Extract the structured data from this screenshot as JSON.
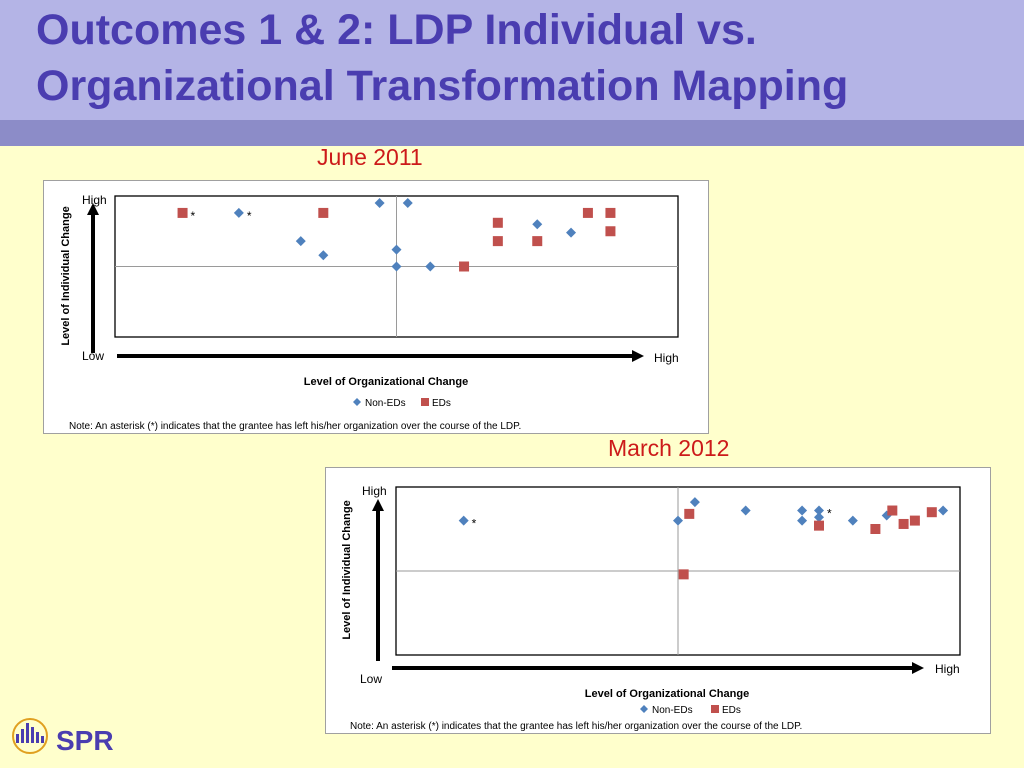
{
  "slide": {
    "title_line1": "Outcomes 1 & 2:  LDP Individual vs.",
    "title_line2": "Organizational Transformation Mapping",
    "logo_text": "SPR"
  },
  "colors": {
    "header_bg": "#b4b4e6",
    "header_strip": "#8c8cc8",
    "title": "#4a3db0",
    "page_bg": "#ffffcc",
    "period_label": "#cc1a1a",
    "non_eds": "#4f81bd",
    "eds": "#c0504d"
  },
  "chart_data": [
    {
      "type": "scatter",
      "period": "June 2011",
      "xlabel": "Level of Organizational  Change",
      "ylabel": "Level of Individual  Change",
      "x_low_label": "Low",
      "x_high_label": "High",
      "y_high_label": "High",
      "note": "Note: An asterisk (*) indicates that the grantee has left his/her organization over the course  of the LDP.",
      "xlim": [
        0,
        100
      ],
      "ylim": [
        0,
        100
      ],
      "grid": "quadrant lines at midpoint",
      "legend": "bottom-center",
      "series": [
        {
          "name": "Non-EDs",
          "marker": "diamond",
          "points": [
            {
              "x": 22,
              "y": 88,
              "asterisk": true
            },
            {
              "x": 33,
              "y": 68
            },
            {
              "x": 37,
              "y": 58
            },
            {
              "x": 47,
              "y": 95
            },
            {
              "x": 50,
              "y": 62
            },
            {
              "x": 50,
              "y": 50
            },
            {
              "x": 52,
              "y": 95
            },
            {
              "x": 56,
              "y": 50
            },
            {
              "x": 75,
              "y": 80
            },
            {
              "x": 81,
              "y": 74
            }
          ]
        },
        {
          "name": "EDs",
          "marker": "square",
          "points": [
            {
              "x": 12,
              "y": 88,
              "asterisk": true
            },
            {
              "x": 37,
              "y": 88
            },
            {
              "x": 62,
              "y": 50
            },
            {
              "x": 68,
              "y": 81
            },
            {
              "x": 68,
              "y": 68
            },
            {
              "x": 75,
              "y": 68
            },
            {
              "x": 84,
              "y": 88
            },
            {
              "x": 88,
              "y": 88
            },
            {
              "x": 88,
              "y": 75
            }
          ]
        }
      ]
    },
    {
      "type": "scatter",
      "period": "March 2012",
      "xlabel": "Level of Organizational  Change",
      "ylabel": "Level of Individual  Change",
      "x_low_label": "Low",
      "x_high_label": "High",
      "y_high_label": "High",
      "note": "Note: An asterisk (*) indicates that the grantee has left his/her organization over the course  of the LDP.",
      "xlim": [
        0,
        100
      ],
      "ylim": [
        0,
        100
      ],
      "grid": "quadrant lines at midpoint",
      "legend": "bottom-center",
      "series": [
        {
          "name": "Non-EDs",
          "marker": "diamond",
          "points": [
            {
              "x": 12,
              "y": 80,
              "asterisk": true
            },
            {
              "x": 50,
              "y": 80
            },
            {
              "x": 53,
              "y": 91
            },
            {
              "x": 62,
              "y": 86
            },
            {
              "x": 72,
              "y": 86
            },
            {
              "x": 72,
              "y": 80
            },
            {
              "x": 75,
              "y": 86,
              "asterisk": true
            },
            {
              "x": 75,
              "y": 82
            },
            {
              "x": 81,
              "y": 80
            },
            {
              "x": 87,
              "y": 83
            },
            {
              "x": 97,
              "y": 86
            }
          ]
        },
        {
          "name": "EDs",
          "marker": "square",
          "points": [
            {
              "x": 51,
              "y": 48
            },
            {
              "x": 52,
              "y": 84
            },
            {
              "x": 75,
              "y": 77
            },
            {
              "x": 85,
              "y": 75
            },
            {
              "x": 88,
              "y": 86
            },
            {
              "x": 90,
              "y": 78
            },
            {
              "x": 92,
              "y": 80
            },
            {
              "x": 95,
              "y": 85
            }
          ]
        }
      ]
    }
  ]
}
